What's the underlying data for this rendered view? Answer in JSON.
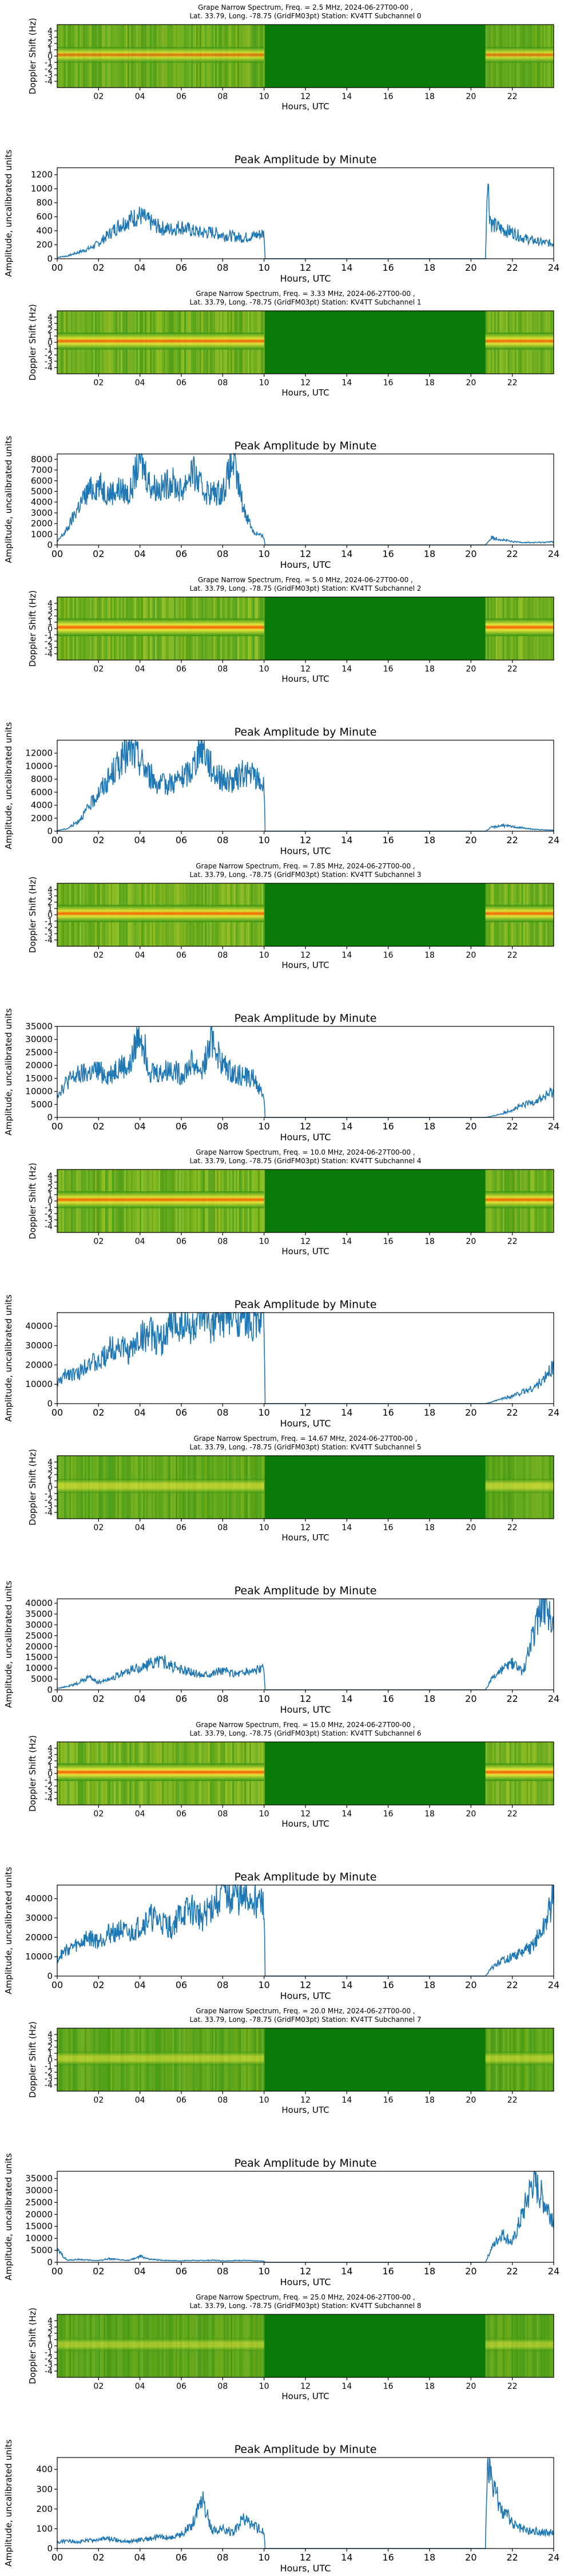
{
  "figure": {
    "x_axis_label": "Hours, UTC",
    "spectrogram_y_label": "Doppler Shift (Hz)",
    "amplitude_y_label": "Amplitude, uncalibrated units",
    "amplitude_title": "Peak Amplitude by Minute",
    "spectrogram_x_ticks": [
      "02",
      "04",
      "06",
      "08",
      "10",
      "12",
      "14",
      "16",
      "18",
      "20",
      "22"
    ],
    "spectrogram_y_ticks": [
      "-4",
      "-3",
      "-2",
      "-1",
      "0",
      "1",
      "2",
      "3",
      "4"
    ],
    "amplitude_x_ticks": [
      "00",
      "02",
      "04",
      "06",
      "08",
      "10",
      "12",
      "14",
      "16",
      "18",
      "20",
      "22",
      "24"
    ]
  },
  "colors": {
    "trace": "#1f77b4",
    "spectrogram_background": "#0a7a0a",
    "spectrogram_low": "#2f8f12",
    "spectrogram_mid": "#e8e83a",
    "spectrogram_high": "#ff5a00"
  },
  "chart_data": [
    {
      "type": "heatmap",
      "title_line1": "Grape Narrow Spectrum, Freq. = 2.5 MHz, 2024-06-27T00-00 ,",
      "title_line2": "Lat.  33.79, Long. -78.75 (GridFM03pt) Station: KV4TT Subchannel 0",
      "x_range_hours": [
        0,
        24
      ],
      "y_range_hz": [
        -5,
        5
      ],
      "data_windows_hours": [
        [
          0,
          10
        ],
        [
          20.7,
          24
        ]
      ],
      "band_strength": 0.7,
      "trace_ref": 1
    },
    {
      "type": "line",
      "title": "Peak Amplitude by Minute",
      "xlabel": "Hours, UTC",
      "ylabel": "Amplitude, uncalibrated units",
      "xlim": [
        0,
        24
      ],
      "ylim": [
        0,
        1300
      ],
      "yticks": [
        0,
        200,
        400,
        600,
        800,
        1000,
        1200
      ],
      "x": [
        0,
        0.5,
        1,
        1.5,
        2,
        2.5,
        3,
        3.5,
        4,
        4.5,
        5,
        5.5,
        6,
        6.5,
        7,
        7.5,
        8,
        8.5,
        9,
        9.5,
        10,
        10.05,
        20.7,
        20.8,
        20.9,
        21,
        21.5,
        22,
        22.5,
        23,
        23.5,
        24
      ],
      "values": [
        20,
        40,
        90,
        140,
        220,
        350,
        480,
        560,
        620,
        520,
        440,
        420,
        460,
        400,
        370,
        380,
        340,
        320,
        300,
        330,
        360,
        0,
        0,
        1250,
        650,
        500,
        420,
        380,
        300,
        260,
        230,
        220
      ]
    },
    {
      "type": "heatmap",
      "title_line1": "Grape Narrow Spectrum, Freq. = 3.33 MHz, 2024-06-27T00-00 ,",
      "title_line2": "Lat.  33.79, Long. -78.75 (GridFM03pt) Station: KV4TT Subchannel 1",
      "x_range_hours": [
        0,
        24
      ],
      "y_range_hz": [
        -5,
        5
      ],
      "data_windows_hours": [
        [
          0,
          10
        ],
        [
          20.7,
          24
        ]
      ],
      "band_strength": 0.9,
      "trace_ref": 3
    },
    {
      "type": "line",
      "title": "Peak Amplitude by Minute",
      "xlabel": "Hours, UTC",
      "ylabel": "Amplitude, uncalibrated units",
      "xlim": [
        0,
        24
      ],
      "ylim": [
        0,
        8500
      ],
      "yticks": [
        0,
        1000,
        2000,
        3000,
        4000,
        5000,
        6000,
        7000,
        8000
      ],
      "x": [
        0,
        0.5,
        1,
        1.5,
        2,
        2.5,
        3,
        3.5,
        4,
        4.5,
        5,
        5.5,
        6,
        6.5,
        7,
        7.5,
        8,
        8.5,
        9,
        9.5,
        10,
        10.05,
        20.7,
        21,
        21.5,
        22,
        22.5,
        23,
        23.5,
        24
      ],
      "values": [
        300,
        1500,
        3500,
        5000,
        5600,
        4800,
        5200,
        4700,
        8200,
        5600,
        5200,
        6000,
        5000,
        7000,
        5200,
        4800,
        5000,
        7800,
        3500,
        1200,
        700,
        0,
        0,
        700,
        500,
        300,
        250,
        220,
        250,
        300
      ]
    },
    {
      "type": "heatmap",
      "title_line1": "Grape Narrow Spectrum, Freq. = 5.0 MHz, 2024-06-27T00-00 ,",
      "title_line2": "Lat.  33.79, Long. -78.75 (GridFM03pt) Station: KV4TT Subchannel 2",
      "x_range_hours": [
        0,
        24
      ],
      "y_range_hz": [
        -5,
        5
      ],
      "data_windows_hours": [
        [
          0,
          10
        ],
        [
          20.7,
          24
        ]
      ],
      "band_strength": 1.0,
      "trace_ref": 5
    },
    {
      "type": "line",
      "title": "Peak Amplitude by Minute",
      "xlabel": "Hours, UTC",
      "ylabel": "Amplitude, uncalibrated units",
      "xlim": [
        0,
        24
      ],
      "ylim": [
        0,
        14000
      ],
      "yticks": [
        0,
        2000,
        4000,
        6000,
        8000,
        10000,
        12000
      ],
      "x": [
        0,
        0.5,
        1,
        1.5,
        2,
        2.5,
        3,
        3.5,
        4,
        4.5,
        5,
        5.5,
        6,
        6.5,
        7,
        7.5,
        8,
        8.5,
        9,
        9.5,
        10,
        10.05,
        20.7,
        21,
        21.5,
        22,
        22.5,
        23,
        23.5,
        24
      ],
      "values": [
        100,
        400,
        1500,
        3500,
        6000,
        8000,
        10500,
        12500,
        11000,
        8500,
        7000,
        7500,
        8000,
        9500,
        13500,
        9500,
        8000,
        7500,
        9000,
        8500,
        7000,
        0,
        0,
        600,
        900,
        700,
        500,
        300,
        200,
        150
      ]
    },
    {
      "type": "heatmap",
      "title_line1": "Grape Narrow Spectrum, Freq. = 7.85 MHz, 2024-06-27T00-00 ,",
      "title_line2": "Lat.  33.79, Long. -78.75 (GridFM03pt) Station: KV4TT Subchannel 3",
      "x_range_hours": [
        0,
        24
      ],
      "y_range_hz": [
        -5,
        5
      ],
      "data_windows_hours": [
        [
          0,
          10
        ],
        [
          20.7,
          24
        ]
      ],
      "band_strength": 0.95,
      "trace_ref": 7
    },
    {
      "type": "line",
      "title": "Peak Amplitude by Minute",
      "xlabel": "Hours, UTC",
      "ylabel": "Amplitude, uncalibrated units",
      "xlim": [
        0,
        24
      ],
      "ylim": [
        0,
        35000
      ],
      "yticks": [
        0,
        5000,
        10000,
        15000,
        20000,
        25000,
        30000,
        35000
      ],
      "x": [
        0,
        0.5,
        1,
        1.5,
        2,
        2.5,
        3,
        3.5,
        4,
        4.5,
        5,
        5.5,
        6,
        6.5,
        7,
        7.5,
        8,
        8.5,
        9,
        9.5,
        10,
        10.05,
        20.7,
        21,
        21.5,
        22,
        22.5,
        23,
        23.5,
        24
      ],
      "values": [
        9000,
        14000,
        16000,
        17000,
        18000,
        16000,
        20000,
        19000,
        34000,
        18000,
        17000,
        19000,
        16000,
        21000,
        18000,
        30000,
        20000,
        17000,
        16000,
        15000,
        8000,
        0,
        0,
        400,
        1500,
        3000,
        4500,
        6000,
        7500,
        10000
      ]
    },
    {
      "type": "heatmap",
      "title_line1": "Grape Narrow Spectrum, Freq. = 10.0 MHz, 2024-06-27T00-00 ,",
      "title_line2": "Lat.  33.79, Long. -78.75 (GridFM03pt) Station: KV4TT Subchannel 4",
      "x_range_hours": [
        0,
        24
      ],
      "y_range_hz": [
        -5,
        5
      ],
      "data_windows_hours": [
        [
          0,
          10
        ],
        [
          20.7,
          24
        ]
      ],
      "band_strength": 0.9,
      "trace_ref": 9
    },
    {
      "type": "line",
      "title": "Peak Amplitude by Minute",
      "xlabel": "Hours, UTC",
      "ylabel": "Amplitude, uncalibrated units",
      "xlim": [
        0,
        24
      ],
      "ylim": [
        0,
        47000
      ],
      "yticks": [
        0,
        10000,
        20000,
        30000,
        40000
      ],
      "x": [
        0,
        0.5,
        1,
        1.5,
        2,
        2.5,
        3,
        3.5,
        4,
        4.5,
        5,
        5.5,
        6,
        6.5,
        7,
        7.5,
        8,
        8.5,
        9,
        9.5,
        10,
        10.05,
        20.7,
        21,
        21.5,
        22,
        22.5,
        23,
        23.5,
        24
      ],
      "values": [
        10000,
        16000,
        15000,
        22000,
        20000,
        28000,
        30000,
        26000,
        34000,
        36000,
        32000,
        40000,
        42000,
        38000,
        44000,
        41000,
        45000,
        44000,
        46000,
        42000,
        44000,
        0,
        0,
        800,
        2500,
        4000,
        6000,
        8000,
        12000,
        20000
      ]
    },
    {
      "type": "heatmap",
      "title_line1": "Grape Narrow Spectrum, Freq. = 14.67 MHz, 2024-06-27T00-00 ,",
      "title_line2": "Lat.  33.79, Long. -78.75 (GridFM03pt) Station: KV4TT Subchannel 5",
      "x_range_hours": [
        0,
        24
      ],
      "y_range_hz": [
        -5,
        5
      ],
      "data_windows_hours": [
        [
          0,
          10
        ],
        [
          20.7,
          24
        ]
      ],
      "band_strength": 0.45,
      "trace_ref": 11
    },
    {
      "type": "line",
      "title": "Peak Amplitude by Minute",
      "xlabel": "Hours, UTC",
      "ylabel": "Amplitude, uncalibrated units",
      "xlim": [
        0,
        24
      ],
      "ylim": [
        0,
        42000
      ],
      "yticks": [
        0,
        5000,
        10000,
        15000,
        20000,
        25000,
        30000,
        35000,
        40000
      ],
      "x": [
        0,
        0.5,
        1,
        1.5,
        2,
        2.5,
        3,
        3.5,
        4,
        4.5,
        5,
        5.5,
        6,
        6.5,
        7,
        7.5,
        8,
        8.5,
        9,
        9.5,
        10,
        10.05,
        20.7,
        21,
        21.5,
        22,
        22.5,
        23,
        23.5,
        24
      ],
      "values": [
        800,
        1500,
        3000,
        6000,
        3500,
        5000,
        7000,
        9000,
        10000,
        12000,
        14000,
        11000,
        9000,
        8000,
        7000,
        8000,
        9000,
        7500,
        8000,
        9000,
        9500,
        0,
        0,
        5000,
        9000,
        12000,
        8000,
        25000,
        42000,
        28000
      ]
    },
    {
      "type": "heatmap",
      "title_line1": "Grape Narrow Spectrum, Freq. = 15.0 MHz, 2024-06-27T00-00 ,",
      "title_line2": "Lat.  33.79, Long. -78.75 (GridFM03pt) Station: KV4TT Subchannel 6",
      "x_range_hours": [
        0,
        24
      ],
      "y_range_hz": [
        -5,
        5
      ],
      "data_windows_hours": [
        [
          0,
          10
        ],
        [
          20.7,
          24
        ]
      ],
      "band_strength": 1.0,
      "trace_ref": 13
    },
    {
      "type": "line",
      "title": "Peak Amplitude by Minute",
      "xlabel": "Hours, UTC",
      "ylabel": "Amplitude, uncalibrated units",
      "xlim": [
        0,
        24
      ],
      "ylim": [
        0,
        47000
      ],
      "yticks": [
        0,
        10000,
        20000,
        30000,
        40000
      ],
      "x": [
        0,
        0.5,
        1,
        1.5,
        2,
        2.5,
        3,
        3.5,
        4,
        4.5,
        5,
        5.5,
        6,
        6.5,
        7,
        7.5,
        8,
        8.5,
        9,
        9.5,
        10,
        10.05,
        20.7,
        21,
        21.5,
        22,
        22.5,
        23,
        23.5,
        24
      ],
      "values": [
        9000,
        14000,
        16000,
        20000,
        18000,
        22000,
        24000,
        21000,
        26000,
        30000,
        28000,
        25000,
        32000,
        34000,
        30000,
        36000,
        44000,
        42000,
        38000,
        40000,
        36000,
        0,
        0,
        4000,
        8000,
        10000,
        12000,
        16000,
        24000,
        40000
      ]
    },
    {
      "type": "heatmap",
      "title_line1": "Grape Narrow Spectrum, Freq. = 20.0 MHz, 2024-06-27T00-00 ,",
      "title_line2": "Lat.  33.79, Long. -78.75 (GridFM03pt) Station: KV4TT Subchannel 7",
      "x_range_hours": [
        0,
        24
      ],
      "y_range_hz": [
        -5,
        5
      ],
      "data_windows_hours": [
        [
          0,
          10
        ],
        [
          20.7,
          24
        ]
      ],
      "band_strength": 0.35,
      "trace_ref": 15
    },
    {
      "type": "line",
      "title": "Peak Amplitude by Minute",
      "xlabel": "Hours, UTC",
      "ylabel": "Amplitude, uncalibrated units",
      "xlim": [
        0,
        24
      ],
      "ylim": [
        0,
        38000
      ],
      "yticks": [
        0,
        5000,
        10000,
        15000,
        20000,
        25000,
        30000,
        35000
      ],
      "x": [
        0,
        0.5,
        1,
        1.5,
        2,
        2.5,
        3,
        3.5,
        4,
        4.5,
        5,
        5.5,
        6,
        6.5,
        7,
        7.5,
        8,
        8.5,
        9,
        9.5,
        10,
        10.05,
        20.7,
        21,
        21.5,
        22,
        22.5,
        23,
        23.5,
        24
      ],
      "values": [
        5000,
        800,
        1200,
        900,
        700,
        1500,
        1000,
        800,
        2500,
        1200,
        900,
        700,
        600,
        800,
        700,
        900,
        600,
        700,
        800,
        600,
        500,
        0,
        0,
        6000,
        12000,
        8000,
        20000,
        34000,
        26000,
        18000
      ]
    },
    {
      "type": "heatmap",
      "title_line1": "Grape Narrow Spectrum, Freq. = 25.0 MHz, 2024-06-27T00-00 ,",
      "title_line2": "Lat.  33.79, Long. -78.75 (GridFM03pt) Station: KV4TT Subchannel 8",
      "x_range_hours": [
        0,
        24
      ],
      "y_range_hz": [
        -5,
        5
      ],
      "data_windows_hours": [
        [
          0,
          10
        ],
        [
          20.7,
          24
        ]
      ],
      "band_strength": 0.25,
      "trace_ref": 17
    },
    {
      "type": "line",
      "title": "Peak Amplitude by Minute",
      "xlabel": "Hours, UTC",
      "ylabel": "Amplitude, uncalibrated units",
      "xlim": [
        0,
        24
      ],
      "ylim": [
        0,
        460
      ],
      "yticks": [
        0,
        100,
        200,
        300,
        400
      ],
      "x": [
        0,
        0.5,
        1,
        1.5,
        2,
        2.5,
        3,
        3.5,
        4,
        4.5,
        5,
        5.5,
        6,
        6.5,
        7,
        7.5,
        8,
        8.5,
        9,
        9.5,
        10,
        10.05,
        20.7,
        20.8,
        21,
        21.5,
        22,
        22.5,
        23,
        23.5,
        24
      ],
      "values": [
        30,
        40,
        35,
        40,
        45,
        50,
        40,
        35,
        45,
        50,
        60,
        55,
        70,
        120,
        260,
        90,
        100,
        80,
        150,
        110,
        90,
        0,
        0,
        440,
        330,
        200,
        130,
        100,
        90,
        80,
        80
      ]
    }
  ]
}
